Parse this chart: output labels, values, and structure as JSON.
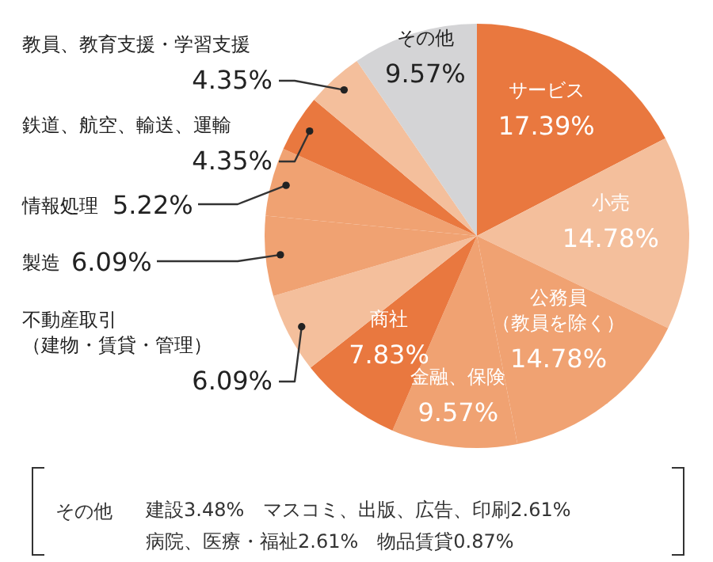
{
  "chart_data": {
    "type": "pie",
    "categories": [
      "サービス",
      "小売",
      "公務員（教員を除く）",
      "金融、保険",
      "商社",
      "不動産取引（建物・賃貸・管理）",
      "製造",
      "情報処理",
      "鉄道、航空、輸送、運輸",
      "教員、教育支援・学習支援",
      "その他"
    ],
    "values": [
      17.39,
      14.78,
      14.78,
      9.57,
      7.83,
      6.09,
      6.09,
      5.22,
      4.35,
      4.35,
      9.57
    ],
    "value_labels": [
      "17.39%",
      "14.78%",
      "14.78%",
      "9.57%",
      "7.83%",
      "6.09%",
      "6.09%",
      "5.22%",
      "4.35%",
      "4.35%",
      "9.57%"
    ],
    "colors": [
      "#e9783f",
      "#f4bf9c",
      "#f0a272",
      "#f0a272",
      "#e9783f",
      "#f4bf9c",
      "#f0a272",
      "#f0a272",
      "#e9783f",
      "#f4bf9c",
      "#d4d4d6"
    ],
    "annotations": [
      "その他",
      "建設3.48%　マスコミ、出版、広告、印刷2.61%",
      "病院、医療・福祉2.61%　物品賃貸0.87%"
    ]
  }
}
